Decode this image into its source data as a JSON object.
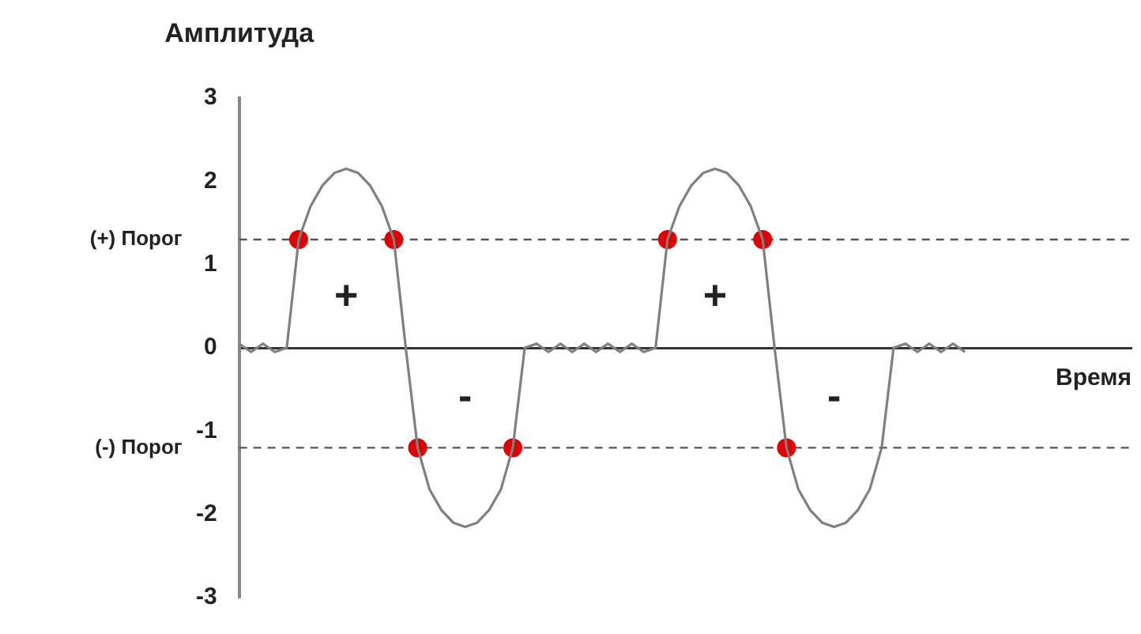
{
  "chart_data": {
    "type": "line",
    "title": "Амплитуда",
    "xlabel": "Время",
    "categories": [
      null,
      null,
      null,
      null,
      null,
      null,
      null,
      null,
      null,
      null,
      null,
      null,
      null,
      null,
      null,
      null,
      null,
      null,
      null,
      null,
      null,
      null,
      null,
      null,
      null,
      null,
      null,
      null,
      null,
      null,
      null,
      null,
      null,
      null,
      null,
      null,
      null,
      null,
      null,
      null,
      null,
      null,
      null,
      null,
      null,
      null,
      null,
      null,
      null,
      null,
      null,
      null,
      null,
      null,
      null,
      null,
      null,
      null,
      null,
      null,
      null,
      null,
      null,
      null,
      null,
      null,
      null,
      null,
      null,
      null,
      null,
      null,
      null,
      null,
      null,
      null
    ],
    "series": [
      {
        "color": "#808080",
        "marker": "none",
        "values": [
          0.05,
          -0.05,
          0.05,
          -0.05,
          0,
          1.3,
          1.7,
          1.95,
          2.1,
          2.15,
          2.1,
          1.95,
          1.7,
          1.3,
          0,
          -1.2,
          -1.7,
          -1.95,
          -2.1,
          -2.15,
          -2.1,
          -1.95,
          -1.7,
          -1.2,
          0,
          0.05,
          -0.05,
          0.05,
          -0.05,
          0.05,
          -0.05,
          0.05,
          -0.05,
          0.05,
          -0.05,
          0,
          1.3,
          1.7,
          1.95,
          2.1,
          2.15,
          2.1,
          1.95,
          1.7,
          1.3,
          0,
          -1.2,
          -1.7,
          -1.95,
          -2.1,
          -2.15,
          -2.1,
          -1.95,
          -1.7,
          -1.2,
          0,
          0.05,
          -0.05,
          0.05,
          -0.05,
          0.05,
          -0.05,
          null,
          null,
          null,
          null,
          null,
          null,
          null,
          null,
          null,
          null,
          null,
          null,
          null,
          null
        ]
      },
      {
        "type": "scatter",
        "color": "#e00000",
        "marker": "circle",
        "values": [
          null,
          null,
          null,
          null,
          null,
          1.3,
          null,
          null,
          null,
          null,
          null,
          null,
          null,
          1.3,
          null,
          -1.2,
          null,
          null,
          null,
          null,
          null,
          null,
          null,
          -1.2,
          null,
          null,
          null,
          null,
          null,
          null,
          null,
          null,
          null,
          null,
          null,
          null,
          1.3,
          null,
          null,
          null,
          null,
          null,
          null,
          null,
          1.3,
          null,
          -1.2,
          null,
          null,
          null,
          null,
          null,
          null,
          null,
          null,
          null,
          null,
          null,
          null,
          null,
          null,
          null,
          null,
          null,
          null,
          null,
          null,
          null,
          null,
          null,
          null,
          null,
          null,
          null,
          null,
          null
        ]
      }
    ],
    "ylim": [
      -3,
      3
    ],
    "yticks": [
      -3,
      -2,
      -1,
      0,
      1,
      2,
      3
    ],
    "ref_lines": [
      {
        "axis": "y",
        "value": 1.3,
        "label": "(+) Порог",
        "color": "#555555",
        "line_style": "dashed"
      },
      {
        "axis": "y",
        "value": -1.2,
        "label": "(-) Порог",
        "color": "#555555",
        "line_style": "dashed"
      }
    ],
    "annotations": [
      "+",
      "-",
      "+",
      "-"
    ],
    "tick_labels": "y",
    "legend": false
  }
}
